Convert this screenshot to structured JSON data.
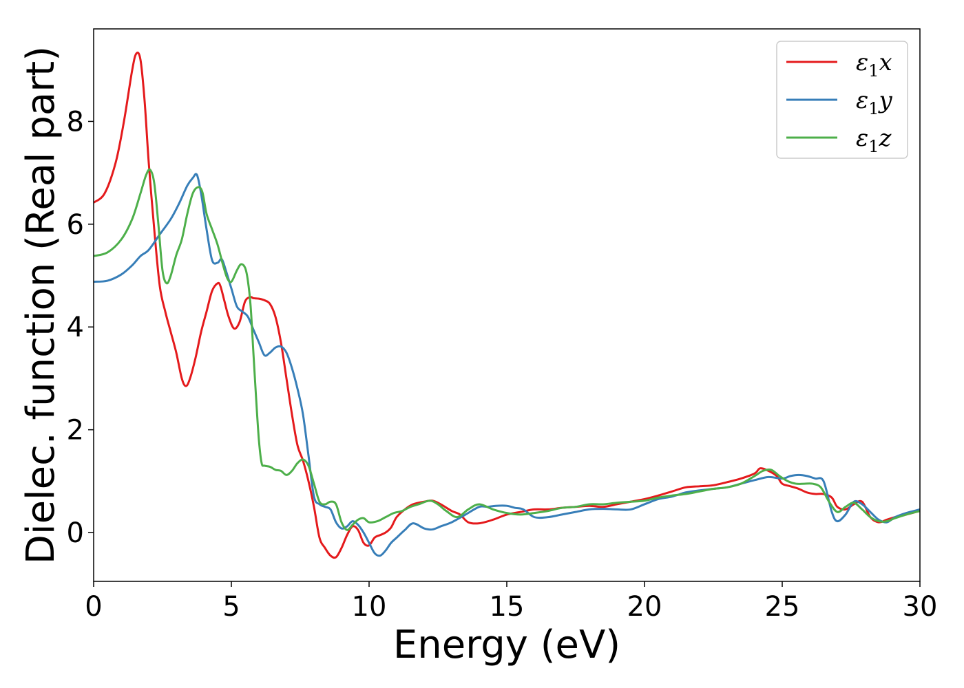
{
  "chart_data": {
    "type": "line",
    "title": "",
    "xlabel": "Energy (eV)",
    "ylabel": "Dielec. function (Real part)",
    "xlim": [
      0,
      30
    ],
    "ylim": [
      -0.95,
      9.8
    ],
    "xticks": [
      0,
      5,
      10,
      15,
      20,
      25,
      30
    ],
    "yticks": [
      0,
      2,
      4,
      6,
      8
    ],
    "grid": false,
    "legend_position": "top-right",
    "series": [
      {
        "name": "ε1x",
        "legend_base": "ε",
        "legend_sub": "1",
        "legend_suffix": "x",
        "color": "#e41a1c",
        "x": [
          0,
          0.4,
          0.8,
          1.1,
          1.4,
          1.55,
          1.7,
          1.85,
          2.0,
          2.2,
          2.4,
          2.6,
          2.8,
          3.0,
          3.2,
          3.35,
          3.5,
          3.7,
          3.9,
          4.1,
          4.3,
          4.5,
          4.6,
          4.75,
          4.9,
          5.1,
          5.3,
          5.5,
          5.7,
          5.8,
          6.0,
          6.2,
          6.4,
          6.6,
          6.8,
          7.0,
          7.2,
          7.4,
          7.6,
          7.8,
          8.0,
          8.2,
          8.4,
          8.6,
          8.8,
          9.0,
          9.2,
          9.4,
          9.6,
          9.8,
          10.0,
          10.2,
          10.4,
          10.6,
          10.8,
          11.0,
          11.3,
          11.6,
          12.0,
          12.3,
          12.6,
          13.0,
          13.3,
          13.6,
          14.0,
          14.5,
          15.0,
          15.5,
          16.0,
          16.5,
          17.0,
          17.5,
          18.0,
          18.5,
          19.0,
          19.5,
          20.0,
          20.5,
          21.0,
          21.5,
          22.0,
          22.5,
          23.0,
          23.5,
          24.0,
          24.2,
          24.5,
          24.8,
          25.0,
          25.3,
          25.6,
          25.9,
          26.2,
          26.5,
          26.8,
          27.0,
          27.3,
          27.6,
          27.9,
          28.2,
          28.5,
          28.8,
          29.1,
          29.5,
          30.0
        ],
        "y": [
          6.42,
          6.6,
          7.2,
          8.0,
          9.0,
          9.32,
          9.2,
          8.4,
          7.2,
          5.9,
          4.8,
          4.3,
          3.9,
          3.5,
          3.0,
          2.85,
          3.0,
          3.4,
          3.9,
          4.3,
          4.7,
          4.85,
          4.8,
          4.5,
          4.2,
          3.97,
          4.1,
          4.5,
          4.58,
          4.56,
          4.55,
          4.52,
          4.45,
          4.2,
          3.7,
          3.0,
          2.3,
          1.7,
          1.4,
          1.0,
          0.5,
          -0.1,
          -0.3,
          -0.45,
          -0.48,
          -0.3,
          -0.05,
          0.12,
          0.05,
          -0.2,
          -0.25,
          -0.1,
          -0.05,
          0.0,
          0.1,
          0.3,
          0.45,
          0.55,
          0.6,
          0.62,
          0.55,
          0.42,
          0.35,
          0.2,
          0.18,
          0.25,
          0.35,
          0.4,
          0.45,
          0.45,
          0.48,
          0.5,
          0.52,
          0.5,
          0.55,
          0.6,
          0.65,
          0.72,
          0.8,
          0.88,
          0.9,
          0.92,
          0.98,
          1.05,
          1.15,
          1.25,
          1.2,
          1.1,
          0.95,
          0.9,
          0.85,
          0.78,
          0.75,
          0.75,
          0.68,
          0.5,
          0.45,
          0.55,
          0.6,
          0.3,
          0.2,
          0.25,
          0.3,
          0.35,
          0.42
        ]
      },
      {
        "name": "ε1y",
        "legend_base": "ε",
        "legend_sub": "1",
        "legend_suffix": "y",
        "color": "#377eb8",
        "x": [
          0,
          0.5,
          1.0,
          1.4,
          1.7,
          2.0,
          2.4,
          2.8,
          3.1,
          3.4,
          3.6,
          3.75,
          3.9,
          4.1,
          4.3,
          4.5,
          4.65,
          4.8,
          5.0,
          5.2,
          5.4,
          5.6,
          5.8,
          6.0,
          6.2,
          6.4,
          6.6,
          6.8,
          7.0,
          7.2,
          7.4,
          7.6,
          7.8,
          8.0,
          8.2,
          8.4,
          8.6,
          8.8,
          9.0,
          9.2,
          9.4,
          9.6,
          9.8,
          10.0,
          10.2,
          10.4,
          10.6,
          10.8,
          11.0,
          11.3,
          11.6,
          12.0,
          12.3,
          12.6,
          13.0,
          13.5,
          14.0,
          14.3,
          14.6,
          15.0,
          15.3,
          15.6,
          16.0,
          16.5,
          17.0,
          17.5,
          18.0,
          18.5,
          19.0,
          19.5,
          20.0,
          20.5,
          21.0,
          21.5,
          22.0,
          22.5,
          23.0,
          23.5,
          24.0,
          24.5,
          25.0,
          25.3,
          25.6,
          25.9,
          26.2,
          26.5,
          26.8,
          27.0,
          27.3,
          27.6,
          27.9,
          28.2,
          28.5,
          28.8,
          29.1,
          29.5,
          30.0
        ],
        "y": [
          4.88,
          4.9,
          5.02,
          5.2,
          5.38,
          5.5,
          5.8,
          6.1,
          6.4,
          6.75,
          6.9,
          6.96,
          6.6,
          5.9,
          5.3,
          5.25,
          5.32,
          5.1,
          4.75,
          4.4,
          4.3,
          4.2,
          3.95,
          3.7,
          3.45,
          3.5,
          3.6,
          3.62,
          3.5,
          3.2,
          2.8,
          2.3,
          1.5,
          0.7,
          0.55,
          0.5,
          0.45,
          0.2,
          0.08,
          0.12,
          0.22,
          0.15,
          0.0,
          -0.2,
          -0.4,
          -0.45,
          -0.35,
          -0.2,
          -0.1,
          0.05,
          0.18,
          0.08,
          0.06,
          0.12,
          0.2,
          0.35,
          0.5,
          0.5,
          0.52,
          0.52,
          0.48,
          0.45,
          0.3,
          0.3,
          0.35,
          0.4,
          0.45,
          0.46,
          0.45,
          0.45,
          0.55,
          0.65,
          0.7,
          0.78,
          0.82,
          0.85,
          0.88,
          0.95,
          1.02,
          1.08,
          1.05,
          1.1,
          1.12,
          1.1,
          1.05,
          1.0,
          0.4,
          0.22,
          0.35,
          0.6,
          0.55,
          0.4,
          0.25,
          0.2,
          0.3,
          0.38,
          0.45
        ]
      },
      {
        "name": "ε1z",
        "legend_base": "ε",
        "legend_sub": "1",
        "legend_suffix": "z",
        "color": "#4daf4a",
        "x": [
          0,
          0.5,
          1.0,
          1.4,
          1.7,
          1.9,
          2.05,
          2.2,
          2.35,
          2.5,
          2.65,
          2.8,
          3.0,
          3.2,
          3.4,
          3.6,
          3.8,
          3.95,
          4.1,
          4.3,
          4.5,
          4.7,
          4.85,
          5.0,
          5.2,
          5.35,
          5.5,
          5.6,
          5.7,
          5.8,
          5.9,
          6.0,
          6.1,
          6.2,
          6.4,
          6.6,
          6.8,
          7.0,
          7.2,
          7.4,
          7.6,
          7.8,
          8.0,
          8.2,
          8.4,
          8.6,
          8.8,
          9.0,
          9.2,
          9.4,
          9.6,
          9.8,
          10.0,
          10.3,
          10.6,
          10.9,
          11.2,
          11.5,
          11.8,
          12.2,
          12.5,
          12.8,
          13.2,
          13.6,
          14.0,
          14.5,
          15.0,
          15.5,
          16.0,
          16.5,
          17.0,
          17.5,
          18.0,
          18.5,
          19.0,
          19.5,
          20.0,
          20.5,
          21.0,
          21.5,
          22.0,
          22.5,
          23.0,
          23.5,
          24.0,
          24.3,
          24.6,
          24.9,
          25.2,
          25.5,
          25.8,
          26.1,
          26.4,
          26.7,
          27.0,
          27.3,
          27.6,
          27.9,
          28.2,
          28.5,
          28.8,
          29.1,
          29.5,
          30.0
        ],
        "y": [
          5.38,
          5.45,
          5.7,
          6.1,
          6.6,
          6.95,
          7.06,
          6.8,
          6.0,
          5.1,
          4.85,
          5.0,
          5.4,
          5.7,
          6.2,
          6.6,
          6.72,
          6.62,
          6.2,
          5.9,
          5.6,
          5.2,
          4.95,
          4.88,
          5.1,
          5.22,
          5.15,
          4.9,
          4.4,
          3.5,
          2.6,
          1.8,
          1.35,
          1.3,
          1.28,
          1.22,
          1.2,
          1.12,
          1.2,
          1.35,
          1.42,
          1.3,
          0.95,
          0.6,
          0.55,
          0.6,
          0.55,
          0.2,
          0.05,
          0.15,
          0.25,
          0.28,
          0.2,
          0.22,
          0.3,
          0.38,
          0.42,
          0.5,
          0.55,
          0.62,
          0.55,
          0.42,
          0.3,
          0.45,
          0.55,
          0.45,
          0.38,
          0.35,
          0.38,
          0.42,
          0.48,
          0.5,
          0.55,
          0.55,
          0.58,
          0.6,
          0.62,
          0.68,
          0.72,
          0.75,
          0.8,
          0.85,
          0.88,
          0.95,
          1.1,
          1.2,
          1.22,
          1.1,
          1.0,
          0.95,
          0.95,
          0.95,
          0.88,
          0.6,
          0.4,
          0.5,
          0.58,
          0.45,
          0.3,
          0.22,
          0.22,
          0.28,
          0.35,
          0.42
        ]
      }
    ]
  }
}
